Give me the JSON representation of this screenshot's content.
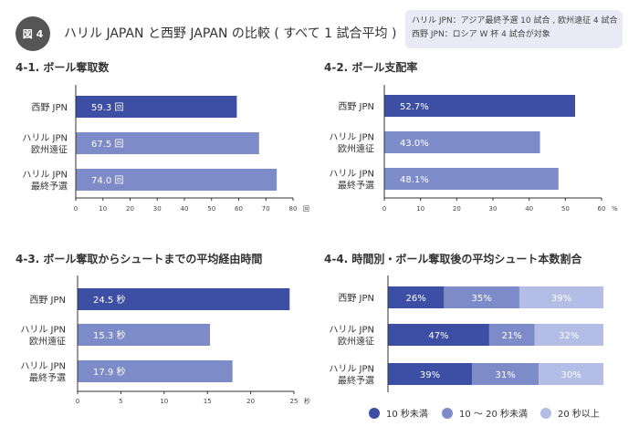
{
  "header": {
    "badge": "図 4",
    "title": "ハリル JAPAN と西野 JAPAN の比較 ( すべて 1 試合平均 )",
    "note_line1": "ハリル JPN：アジア最終予選 10 試合 , 欧州遠征 4 試合",
    "note_line2": "西野 JPN：ロシア W 杯 4 試合が対象"
  },
  "colors": {
    "dark": "#3d4fa5",
    "mid": "#7d8cc8",
    "light": "#b3bde6",
    "axis": "#333333"
  },
  "chart_data": [
    {
      "id": "c1",
      "type": "bar",
      "title": "4-1. ボール奪取数",
      "categories": [
        [
          "西野 JPN"
        ],
        [
          "ハリル JPN",
          "欧州遠征"
        ],
        [
          "ハリル JPN",
          "最終予選"
        ]
      ],
      "values": [
        59.3,
        67.5,
        74.0
      ],
      "value_labels": [
        "59.3 回",
        "67.5 回",
        "74.0 回"
      ],
      "xlim": [
        0,
        80
      ],
      "ticks": [
        "0",
        "10",
        "20",
        "30",
        "40",
        "50",
        "60",
        "70",
        "80"
      ],
      "unit": "回"
    },
    {
      "id": "c2",
      "type": "bar",
      "title": "4-2. ボール支配率",
      "categories": [
        [
          "西野 JPN"
        ],
        [
          "ハリル JPN",
          "欧州遠征"
        ],
        [
          "ハリル JPN",
          "最終予選"
        ]
      ],
      "values": [
        52.7,
        43.0,
        48.1
      ],
      "value_labels": [
        "52.7%",
        "43.0%",
        "48.1%"
      ],
      "xlim": [
        0,
        60
      ],
      "ticks": [
        "0",
        "10",
        "20",
        "30",
        "40",
        "50",
        "60"
      ],
      "unit": "%"
    },
    {
      "id": "c3",
      "type": "bar",
      "title": "4-3. ボール奪取からシュートまでの平均経由時間",
      "categories": [
        [
          "西野 JPN"
        ],
        [
          "ハリル JPN",
          "欧州遠征"
        ],
        [
          "ハリル JPN",
          "最終予選"
        ]
      ],
      "values": [
        24.5,
        15.3,
        17.9
      ],
      "value_labels": [
        "24.5 秒",
        "15.3 秒",
        "17.9 秒"
      ],
      "xlim": [
        0,
        25
      ],
      "ticks": [
        "0",
        "5",
        "10",
        "15",
        "20",
        "25"
      ],
      "unit": "秒"
    },
    {
      "id": "c4",
      "type": "bar",
      "stacked": true,
      "title": "4-4. 時間別・ボール奪取後の平均シュート本数割合",
      "categories": [
        [
          "西野 JPN"
        ],
        [
          "ハリル JPN",
          "欧州遠征"
        ],
        [
          "ハリル JPN",
          "最終予選"
        ]
      ],
      "series": [
        {
          "name": "10 秒未満",
          "values": [
            26,
            47,
            39
          ],
          "labels": [
            "26%",
            "47%",
            "39%"
          ]
        },
        {
          "name": "10 〜 20 秒未満",
          "values": [
            35,
            21,
            31
          ],
          "labels": [
            "35%",
            "21%",
            "31%"
          ]
        },
        {
          "name": "20 秒以上",
          "values": [
            39,
            32,
            30
          ],
          "labels": [
            "39%",
            "32%",
            "30%"
          ]
        }
      ],
      "xlim": [
        0,
        100
      ]
    }
  ]
}
